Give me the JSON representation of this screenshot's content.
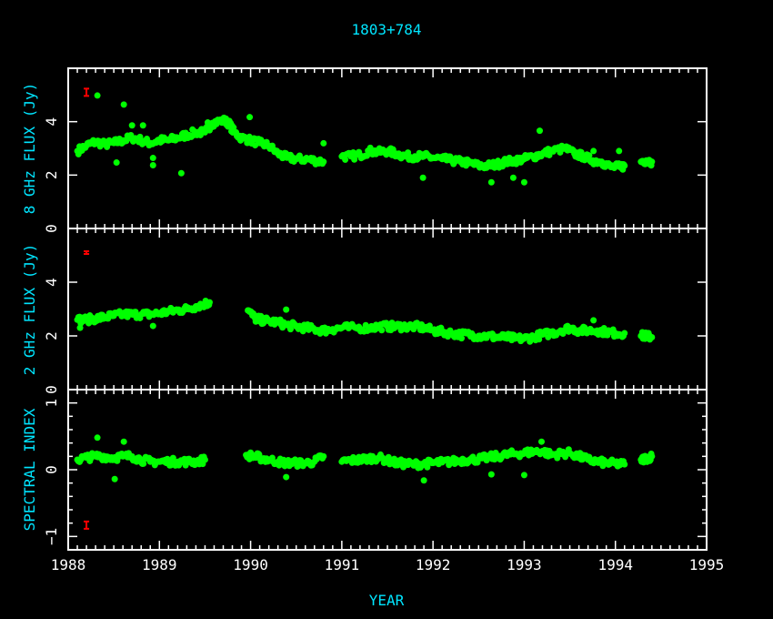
{
  "chart_data": [
    {
      "type": "scatter",
      "title": "1803+784",
      "ylabel": "8 GHz FLUX (Jy)",
      "ylim": [
        0,
        6
      ],
      "yticks": [
        "0",
        "2",
        "4"
      ],
      "error_bar": {
        "x": 1988.2,
        "y": 5.1
      },
      "points": [
        [
          1988.1,
          2.9
        ],
        [
          1988.2,
          3.1
        ],
        [
          1988.3,
          3.25
        ],
        [
          1988.4,
          3.15
        ],
        [
          1988.5,
          3.2
        ],
        [
          1988.6,
          3.3
        ],
        [
          1988.7,
          3.4
        ],
        [
          1988.8,
          3.3
        ],
        [
          1988.9,
          3.2
        ],
        [
          1989.0,
          3.3
        ],
        [
          1989.1,
          3.3
        ],
        [
          1989.2,
          3.4
        ],
        [
          1989.3,
          3.5
        ],
        [
          1989.4,
          3.6
        ],
        [
          1989.5,
          3.6
        ],
        [
          1989.58,
          3.95
        ],
        [
          1989.7,
          4.05
        ],
        [
          1989.76,
          3.95
        ],
        [
          1989.82,
          3.6
        ],
        [
          1989.9,
          3.4
        ],
        [
          1990.0,
          3.3
        ],
        [
          1990.1,
          3.2
        ],
        [
          1990.2,
          3.1
        ],
        [
          1990.3,
          2.8
        ],
        [
          1990.4,
          2.65
        ],
        [
          1990.5,
          2.6
        ],
        [
          1990.6,
          2.6
        ],
        [
          1990.7,
          2.55
        ],
        [
          1990.8,
          2.5
        ],
        [
          1991.0,
          2.7
        ],
        [
          1991.1,
          2.7
        ],
        [
          1991.2,
          2.75
        ],
        [
          1991.3,
          2.9
        ],
        [
          1991.4,
          2.85
        ],
        [
          1991.5,
          2.9
        ],
        [
          1991.6,
          2.8
        ],
        [
          1991.7,
          2.7
        ],
        [
          1991.8,
          2.7
        ],
        [
          1991.9,
          2.7
        ],
        [
          1992.0,
          2.65
        ],
        [
          1992.1,
          2.6
        ],
        [
          1992.2,
          2.55
        ],
        [
          1992.3,
          2.5
        ],
        [
          1992.4,
          2.45
        ],
        [
          1992.5,
          2.35
        ],
        [
          1992.6,
          2.35
        ],
        [
          1992.7,
          2.4
        ],
        [
          1992.8,
          2.5
        ],
        [
          1992.9,
          2.55
        ],
        [
          1993.0,
          2.6
        ],
        [
          1993.1,
          2.7
        ],
        [
          1993.2,
          2.8
        ],
        [
          1993.3,
          2.9
        ],
        [
          1993.45,
          3.0
        ],
        [
          1993.55,
          2.8
        ],
        [
          1993.65,
          2.7
        ],
        [
          1993.75,
          2.55
        ],
        [
          1993.85,
          2.5
        ],
        [
          1993.95,
          2.3
        ],
        [
          1994.05,
          2.3
        ],
        [
          1994.1,
          2.35
        ],
        [
          1994.28,
          2.5
        ],
        [
          1994.34,
          2.55
        ],
        [
          1994.4,
          2.5
        ]
      ],
      "outliers": [
        [
          1988.32,
          4.98
        ],
        [
          1988.61,
          4.64
        ],
        [
          1988.53,
          2.47
        ],
        [
          1988.93,
          2.64
        ],
        [
          1988.93,
          2.37
        ],
        [
          1988.7,
          3.86
        ],
        [
          1988.82,
          3.86
        ],
        [
          1989.24,
          2.07
        ],
        [
          1989.53,
          3.97
        ],
        [
          1989.99,
          4.17
        ],
        [
          1990.8,
          3.19
        ],
        [
          1991.89,
          1.9
        ],
        [
          1992.64,
          1.73
        ],
        [
          1992.88,
          1.9
        ],
        [
          1993.0,
          1.73
        ],
        [
          1993.17,
          3.66
        ],
        [
          1993.76,
          2.9
        ],
        [
          1994.04,
          2.9
        ]
      ]
    },
    {
      "type": "scatter",
      "ylabel": "2 GHz FLUX (Jy)",
      "ylim": [
        0,
        6
      ],
      "yticks": [
        "0",
        "2",
        "4"
      ],
      "error_bar": {
        "x": 1988.2,
        "y": 5.1
      },
      "points": [
        [
          1988.1,
          2.6
        ],
        [
          1988.2,
          2.6
        ],
        [
          1988.3,
          2.65
        ],
        [
          1988.4,
          2.7
        ],
        [
          1988.5,
          2.75
        ],
        [
          1988.6,
          2.8
        ],
        [
          1988.7,
          2.8
        ],
        [
          1988.8,
          2.8
        ],
        [
          1988.9,
          2.8
        ],
        [
          1989.0,
          2.85
        ],
        [
          1989.1,
          2.9
        ],
        [
          1989.2,
          2.95
        ],
        [
          1989.3,
          3.0
        ],
        [
          1989.4,
          3.1
        ],
        [
          1989.5,
          3.2
        ],
        [
          1989.55,
          3.25
        ],
        [
          1989.97,
          2.95
        ],
        [
          1990.05,
          2.65
        ],
        [
          1990.1,
          2.6
        ],
        [
          1990.2,
          2.55
        ],
        [
          1990.3,
          2.5
        ],
        [
          1990.4,
          2.4
        ],
        [
          1990.5,
          2.35
        ],
        [
          1990.6,
          2.3
        ],
        [
          1990.7,
          2.25
        ],
        [
          1990.8,
          2.2
        ],
        [
          1990.9,
          2.25
        ],
        [
          1991.0,
          2.3
        ],
        [
          1991.15,
          2.3
        ],
        [
          1991.3,
          2.3
        ],
        [
          1991.4,
          2.35
        ],
        [
          1991.5,
          2.35
        ],
        [
          1991.6,
          2.35
        ],
        [
          1991.7,
          2.35
        ],
        [
          1991.8,
          2.35
        ],
        [
          1991.9,
          2.3
        ],
        [
          1992.0,
          2.2
        ],
        [
          1992.1,
          2.15
        ],
        [
          1992.2,
          2.1
        ],
        [
          1992.3,
          2.05
        ],
        [
          1992.4,
          2.05
        ],
        [
          1992.5,
          2.0
        ],
        [
          1992.6,
          2.0
        ],
        [
          1992.7,
          1.95
        ],
        [
          1992.8,
          1.95
        ],
        [
          1992.9,
          1.9
        ],
        [
          1993.0,
          1.9
        ],
        [
          1993.1,
          1.95
        ],
        [
          1993.2,
          2.05
        ],
        [
          1993.3,
          2.1
        ],
        [
          1993.4,
          2.2
        ],
        [
          1993.5,
          2.3
        ],
        [
          1993.6,
          2.2
        ],
        [
          1993.7,
          2.2
        ],
        [
          1993.8,
          2.2
        ],
        [
          1993.9,
          2.15
        ],
        [
          1994.0,
          2.1
        ],
        [
          1994.1,
          2.1
        ],
        [
          1994.28,
          2.0
        ],
        [
          1994.34,
          2.0
        ],
        [
          1994.4,
          1.95
        ]
      ],
      "outliers": [
        [
          1988.13,
          2.3
        ],
        [
          1988.93,
          2.37
        ],
        [
          1990.39,
          2.98
        ],
        [
          1993.76,
          2.58
        ]
      ]
    },
    {
      "type": "scatter",
      "ylabel": "SPECTRAL  INDEX",
      "xlabel": "YEAR",
      "xlim": [
        1988,
        1995
      ],
      "xticks": [
        "1988",
        "1989",
        "1990",
        "1991",
        "1992",
        "1993",
        "1994",
        "1995"
      ],
      "ylim": [
        -1.2,
        1.2
      ],
      "yticks": [
        "-1",
        "0",
        "1"
      ],
      "error_bar": {
        "x": 1988.2,
        "y": -0.83
      },
      "points": [
        [
          1988.1,
          0.15
        ],
        [
          1988.2,
          0.18
        ],
        [
          1988.3,
          0.2
        ],
        [
          1988.4,
          0.2
        ],
        [
          1988.5,
          0.18
        ],
        [
          1988.6,
          0.2
        ],
        [
          1988.7,
          0.2
        ],
        [
          1988.8,
          0.15
        ],
        [
          1988.9,
          0.12
        ],
        [
          1989.0,
          0.12
        ],
        [
          1989.1,
          0.12
        ],
        [
          1989.2,
          0.12
        ],
        [
          1989.3,
          0.12
        ],
        [
          1989.4,
          0.12
        ],
        [
          1989.5,
          0.15
        ],
        [
          1989.95,
          0.22
        ],
        [
          1990.05,
          0.2
        ],
        [
          1990.1,
          0.18
        ],
        [
          1990.2,
          0.15
        ],
        [
          1990.3,
          0.12
        ],
        [
          1990.4,
          0.1
        ],
        [
          1990.5,
          0.1
        ],
        [
          1990.6,
          0.1
        ],
        [
          1990.7,
          0.12
        ],
        [
          1990.8,
          0.2
        ],
        [
          1991.0,
          0.12
        ],
        [
          1991.1,
          0.14
        ],
        [
          1991.2,
          0.15
        ],
        [
          1991.3,
          0.17
        ],
        [
          1991.4,
          0.18
        ],
        [
          1991.5,
          0.14
        ],
        [
          1991.6,
          0.1
        ],
        [
          1991.7,
          0.09
        ],
        [
          1991.8,
          0.08
        ],
        [
          1991.9,
          0.09
        ],
        [
          1992.0,
          0.1
        ],
        [
          1992.1,
          0.11
        ],
        [
          1992.2,
          0.12
        ],
        [
          1992.3,
          0.14
        ],
        [
          1992.4,
          0.15
        ],
        [
          1992.5,
          0.16
        ],
        [
          1992.6,
          0.18
        ],
        [
          1992.7,
          0.2
        ],
        [
          1992.8,
          0.22
        ],
        [
          1992.9,
          0.24
        ],
        [
          1993.0,
          0.25
        ],
        [
          1993.1,
          0.27
        ],
        [
          1993.2,
          0.28
        ],
        [
          1993.3,
          0.22
        ],
        [
          1993.4,
          0.24
        ],
        [
          1993.5,
          0.25
        ],
        [
          1993.6,
          0.2
        ],
        [
          1993.7,
          0.15
        ],
        [
          1993.8,
          0.12
        ],
        [
          1993.9,
          0.1
        ],
        [
          1994.0,
          0.09
        ],
        [
          1994.1,
          0.08
        ],
        [
          1994.28,
          0.15
        ],
        [
          1994.34,
          0.17
        ],
        [
          1994.4,
          0.2
        ]
      ],
      "outliers": [
        [
          1988.32,
          0.48
        ],
        [
          1988.61,
          0.42
        ],
        [
          1988.51,
          -0.14
        ],
        [
          1990.39,
          -0.11
        ],
        [
          1991.9,
          -0.16
        ],
        [
          1993.19,
          0.42
        ],
        [
          1993.0,
          -0.08
        ],
        [
          1992.64,
          -0.07
        ]
      ]
    }
  ],
  "colors": {
    "points": "#00ff00",
    "error_bar": "#ff0000",
    "labels": "#00e5ff",
    "axes": "#ffffff",
    "background": "#000000"
  }
}
